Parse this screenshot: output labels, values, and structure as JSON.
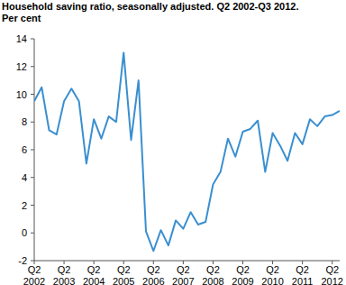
{
  "chart_data": {
    "type": "line",
    "title": "Household saving ratio, seasonally adjusted. Q2 2002-Q3 2012.",
    "subtitle": "Per cent",
    "categories": [
      "Q2\n2002",
      null,
      null,
      null,
      "Q2\n2003",
      null,
      null,
      null,
      "Q2\n2004",
      null,
      null,
      null,
      "Q2\n2005",
      null,
      null,
      null,
      "Q2\n2006",
      null,
      null,
      null,
      "Q2\n2007",
      null,
      null,
      null,
      "Q2\n2008",
      null,
      null,
      null,
      "Q2\n2009",
      null,
      null,
      null,
      "Q2\n2010",
      null,
      null,
      null,
      "Q2\n2011",
      null,
      null,
      null,
      "Q2\n2012",
      null
    ],
    "values": [
      9.5,
      10.5,
      7.4,
      7.1,
      9.5,
      10.4,
      9.5,
      5.0,
      8.2,
      6.8,
      8.4,
      8.0,
      13.0,
      6.7,
      11.0,
      0.1,
      -1.3,
      0.2,
      -0.9,
      0.9,
      0.3,
      1.5,
      0.6,
      0.8,
      3.5,
      4.4,
      6.8,
      5.5,
      7.3,
      7.5,
      8.1,
      4.4,
      7.2,
      6.3,
      5.2,
      7.2,
      6.4,
      8.2,
      7.7,
      8.4,
      8.5,
      8.8
    ],
    "color": "#3a8fd0",
    "ylim": [
      -2,
      14
    ],
    "yticks": [
      -2,
      0,
      2,
      4,
      6,
      8,
      10,
      12,
      14
    ],
    "grid": false
  }
}
